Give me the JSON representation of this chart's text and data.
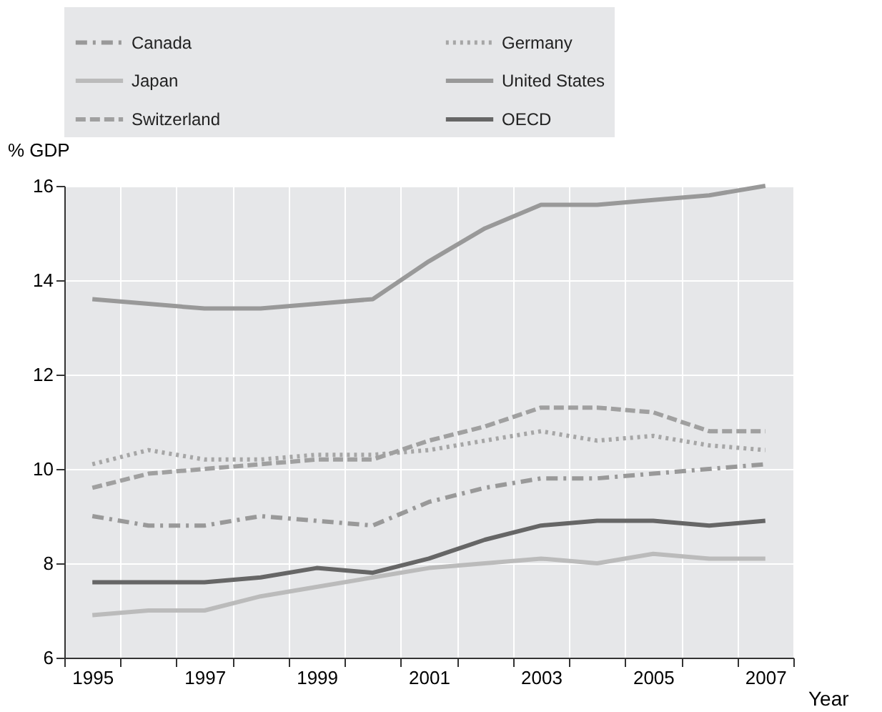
{
  "chart_data": {
    "type": "line",
    "ylabel": "% GDP",
    "xlabel": "Year",
    "categories": [
      "1995",
      null,
      "1997",
      null,
      "1999",
      null,
      "2001",
      null,
      "2003",
      null,
      "2005",
      null,
      "2007"
    ],
    "ylim": [
      6,
      16
    ],
    "yticks": [
      6,
      8,
      10,
      12,
      14,
      16
    ],
    "grid": true,
    "legend": "top",
    "marker": "none",
    "series": [
      {
        "name": "Canada",
        "color": "#999999",
        "line_style": "dashdot",
        "values": [
          9.0,
          8.8,
          8.8,
          9.0,
          8.9,
          8.8,
          9.3,
          9.6,
          9.8,
          9.8,
          9.9,
          10.0,
          10.1
        ]
      },
      {
        "name": "Germany",
        "color": "#a6a6a6",
        "line_style": "dotted",
        "values": [
          10.1,
          10.4,
          10.2,
          10.2,
          10.3,
          10.3,
          10.4,
          10.6,
          10.8,
          10.6,
          10.7,
          10.5,
          10.4
        ]
      },
      {
        "name": "Japan",
        "color": "#bbbbbb",
        "line_style": "solid",
        "values": [
          6.9,
          7.0,
          7.0,
          7.3,
          7.5,
          7.7,
          7.9,
          8.0,
          8.1,
          8.0,
          8.2,
          8.1,
          8.1
        ]
      },
      {
        "name": "United States",
        "color": "#999999",
        "line_style": "solid",
        "values": [
          13.6,
          13.5,
          13.4,
          13.4,
          13.5,
          13.6,
          14.4,
          15.1,
          15.6,
          15.6,
          15.7,
          15.8,
          16.0
        ]
      },
      {
        "name": "Switzerland",
        "color": "#a0a0a0",
        "line_style": "dashed",
        "values": [
          9.6,
          9.9,
          10.0,
          10.1,
          10.2,
          10.2,
          10.6,
          10.9,
          11.3,
          11.3,
          11.2,
          10.8,
          10.8
        ]
      },
      {
        "name": "OECD",
        "color": "#666666",
        "line_style": "solid",
        "values": [
          7.6,
          7.6,
          7.6,
          7.7,
          7.9,
          7.8,
          8.1,
          8.5,
          8.8,
          8.9,
          8.9,
          8.8,
          8.9
        ]
      }
    ]
  }
}
